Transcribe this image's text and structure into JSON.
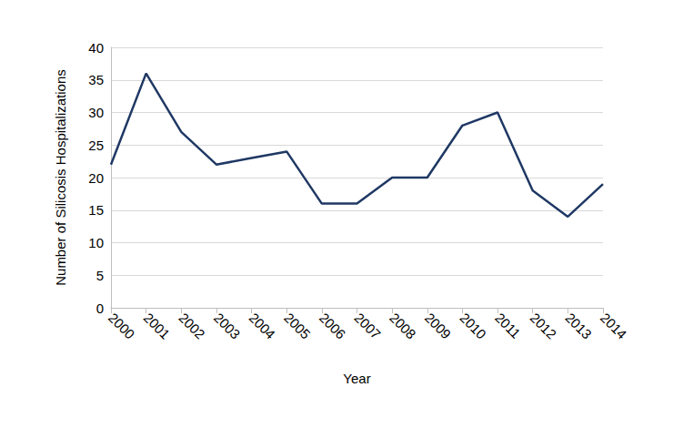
{
  "chart_data": {
    "type": "line",
    "x_label": "Year",
    "y_label": "Number of Silicosis Hospitalizations",
    "categories": [
      "2000",
      "2001",
      "2002",
      "2003",
      "2004",
      "2005",
      "2006",
      "2007",
      "2008",
      "2009",
      "2010",
      "2011",
      "2012",
      "2013",
      "2014"
    ],
    "values": [
      22,
      36,
      27,
      22,
      23,
      24,
      16,
      16,
      20,
      20,
      28,
      30,
      18,
      14,
      19
    ],
    "color": "#1f3864",
    "ylim": [
      0,
      40
    ],
    "yticks": [
      0,
      5,
      10,
      15,
      20,
      25,
      30,
      35,
      40
    ],
    "grid": true
  }
}
